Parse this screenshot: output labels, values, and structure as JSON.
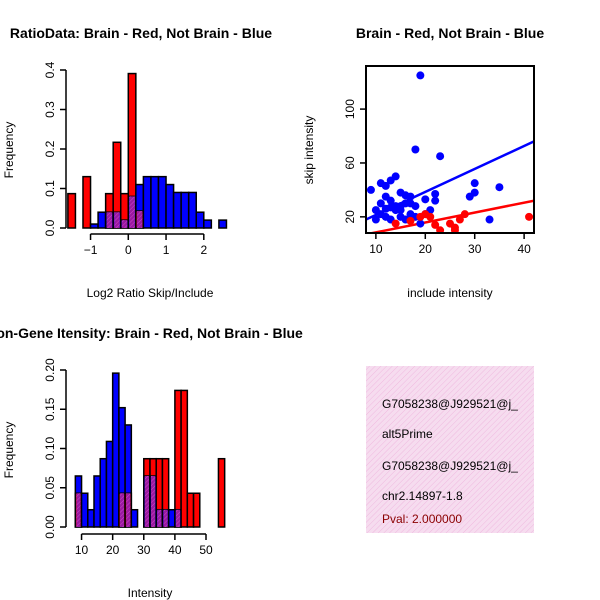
{
  "chart_data": [
    {
      "type": "histogram",
      "title": "RatioData: Brain - Red, Not Brain - Blue",
      "xlabel": "Log2 Ratio Skip/Include",
      "ylabel": "Frequency",
      "xlim": [
        -1.65,
        2.8
      ],
      "ylim": [
        0,
        0.4
      ],
      "xticks": [
        -1,
        0,
        1,
        2
      ],
      "yticks": [
        0.0,
        0.1,
        0.2,
        0.3,
        0.4
      ],
      "bin_width": 0.2,
      "series": [
        {
          "name": "Not Brain",
          "color": "#0000ff",
          "bins": [
            [
              -1.0,
              -0.8,
              0.01
            ],
            [
              -0.8,
              -0.6,
              0.04
            ],
            [
              -0.6,
              -0.4,
              0.04
            ],
            [
              -0.4,
              -0.2,
              0.04
            ],
            [
              -0.2,
              0.0,
              0.02
            ],
            [
              0.0,
              0.2,
              0.08
            ],
            [
              0.2,
              0.4,
              0.11
            ],
            [
              0.4,
              0.6,
              0.13
            ],
            [
              0.6,
              0.8,
              0.13
            ],
            [
              0.8,
              1.0,
              0.13
            ],
            [
              1.0,
              1.2,
              0.11
            ],
            [
              1.2,
              1.4,
              0.09
            ],
            [
              1.4,
              1.6,
              0.09
            ],
            [
              1.6,
              1.8,
              0.09
            ],
            [
              1.8,
              2.0,
              0.04
            ],
            [
              2.0,
              2.2,
              0.02
            ],
            [
              2.4,
              2.6,
              0.02
            ]
          ]
        },
        {
          "name": "Brain",
          "color": "#ff0000",
          "bins": [
            [
              -1.6,
              -1.4,
              0.087
            ],
            [
              -1.2,
              -1.0,
              0.13
            ],
            [
              -0.6,
              -0.4,
              0.087
            ],
            [
              -0.4,
              -0.2,
              0.217
            ],
            [
              -0.2,
              0.0,
              0.087
            ],
            [
              0.0,
              0.2,
              0.391
            ],
            [
              0.2,
              0.4,
              0.043
            ]
          ]
        }
      ]
    },
    {
      "type": "scatter",
      "title": "Brain - Red, Not Brain - Blue",
      "xlabel": "include intensity",
      "ylabel": "skip intensity",
      "xlim": [
        8,
        42
      ],
      "ylim": [
        8,
        132
      ],
      "xticks": [
        10,
        20,
        30,
        40
      ],
      "yticks": [
        20,
        60,
        100
      ],
      "series": [
        {
          "name": "Not Brain",
          "color": "#0000ff",
          "points": [
            [
              19,
              125
            ],
            [
              18,
              70
            ],
            [
              23,
              65
            ],
            [
              9,
              40
            ],
            [
              11,
              45
            ],
            [
              12,
              43
            ],
            [
              13,
              47
            ],
            [
              14,
              50
            ],
            [
              15,
              38
            ],
            [
              16,
              36
            ],
            [
              17,
              30
            ],
            [
              18,
              28
            ],
            [
              20,
              33
            ],
            [
              22,
              32
            ],
            [
              22,
              37
            ],
            [
              10,
              25
            ],
            [
              11,
              22
            ],
            [
              12,
              20
            ],
            [
              13,
              18
            ],
            [
              14,
              25
            ],
            [
              15,
              28
            ],
            [
              16,
              30
            ],
            [
              17,
              22
            ],
            [
              18,
              20
            ],
            [
              19,
              15
            ],
            [
              12,
              35
            ],
            [
              11,
              30
            ],
            [
              13,
              32
            ],
            [
              14,
              28
            ],
            [
              15,
              20
            ],
            [
              16,
              18
            ],
            [
              10,
              18
            ],
            [
              20,
              22
            ],
            [
              21,
              25
            ],
            [
              29,
              35
            ],
            [
              30,
              38
            ],
            [
              30,
              45
            ],
            [
              33,
              18
            ],
            [
              35,
              42
            ],
            [
              17,
              35
            ],
            [
              12,
              26
            ],
            [
              13,
              27
            ],
            [
              15,
              25
            ]
          ]
        },
        {
          "name": "Brain",
          "color": "#ff0000",
          "points": [
            [
              14,
              15
            ],
            [
              17,
              17
            ],
            [
              19,
              20
            ],
            [
              20,
              22
            ],
            [
              21,
              20
            ],
            [
              22,
              14
            ],
            [
              23,
              10
            ],
            [
              25,
              15
            ],
            [
              26,
              12
            ],
            [
              27,
              18
            ],
            [
              28,
              22
            ],
            [
              26,
              10
            ],
            [
              41,
              20
            ]
          ]
        }
      ],
      "fit_lines": [
        {
          "series": "Not Brain",
          "color": "#0000ff",
          "from": [
            8,
            18
          ],
          "to": [
            42,
            76
          ]
        },
        {
          "series": "Brain",
          "color": "#ff0000",
          "from": [
            8,
            7
          ],
          "to": [
            42,
            32
          ]
        }
      ]
    },
    {
      "type": "histogram",
      "title": "Exon-Gene Itensity: Brain - Red, Not Brain - Blue",
      "xlabel": "Intensity",
      "ylabel": "Frequency",
      "xlim": [
        5,
        59
      ],
      "ylim": [
        0,
        0.2
      ],
      "xticks": [
        10,
        20,
        30,
        40,
        50
      ],
      "yticks": [
        0.0,
        0.05,
        0.1,
        0.15,
        0.2
      ],
      "bin_width": 2,
      "series": [
        {
          "name": "Not Brain",
          "color": "#0000ff",
          "bins": [
            [
              8,
              10,
              0.065
            ],
            [
              10,
              12,
              0.043
            ],
            [
              12,
              14,
              0.022
            ],
            [
              14,
              16,
              0.065
            ],
            [
              16,
              18,
              0.087
            ],
            [
              18,
              20,
              0.109
            ],
            [
              20,
              22,
              0.196
            ],
            [
              22,
              24,
              0.152
            ],
            [
              24,
              26,
              0.13
            ],
            [
              26,
              28,
              0.022
            ],
            [
              30,
              32,
              0.065
            ],
            [
              32,
              34,
              0.065
            ],
            [
              34,
              36,
              0.022
            ],
            [
              36,
              38,
              0.022
            ],
            [
              38,
              40,
              0.022
            ],
            [
              40,
              42,
              0.022
            ]
          ]
        },
        {
          "name": "Brain",
          "color": "#ff0000",
          "bins": [
            [
              8,
              10,
              0.043
            ],
            [
              22,
              24,
              0.043
            ],
            [
              24,
              26,
              0.043
            ],
            [
              30,
              32,
              0.087
            ],
            [
              32,
              34,
              0.087
            ],
            [
              34,
              36,
              0.087
            ],
            [
              36,
              38,
              0.087
            ],
            [
              40,
              42,
              0.174
            ],
            [
              42,
              44,
              0.174
            ],
            [
              44,
              46,
              0.043
            ],
            [
              46,
              48,
              0.043
            ],
            [
              54,
              56,
              0.087
            ]
          ]
        }
      ]
    }
  ],
  "info_panel": {
    "lines": [
      "G7058238@J929521@j_",
      "alt5Prime",
      "G7058238@J929521@j_",
      "chr2.14897-1.8"
    ],
    "pval": "Pval: 2.000000"
  }
}
